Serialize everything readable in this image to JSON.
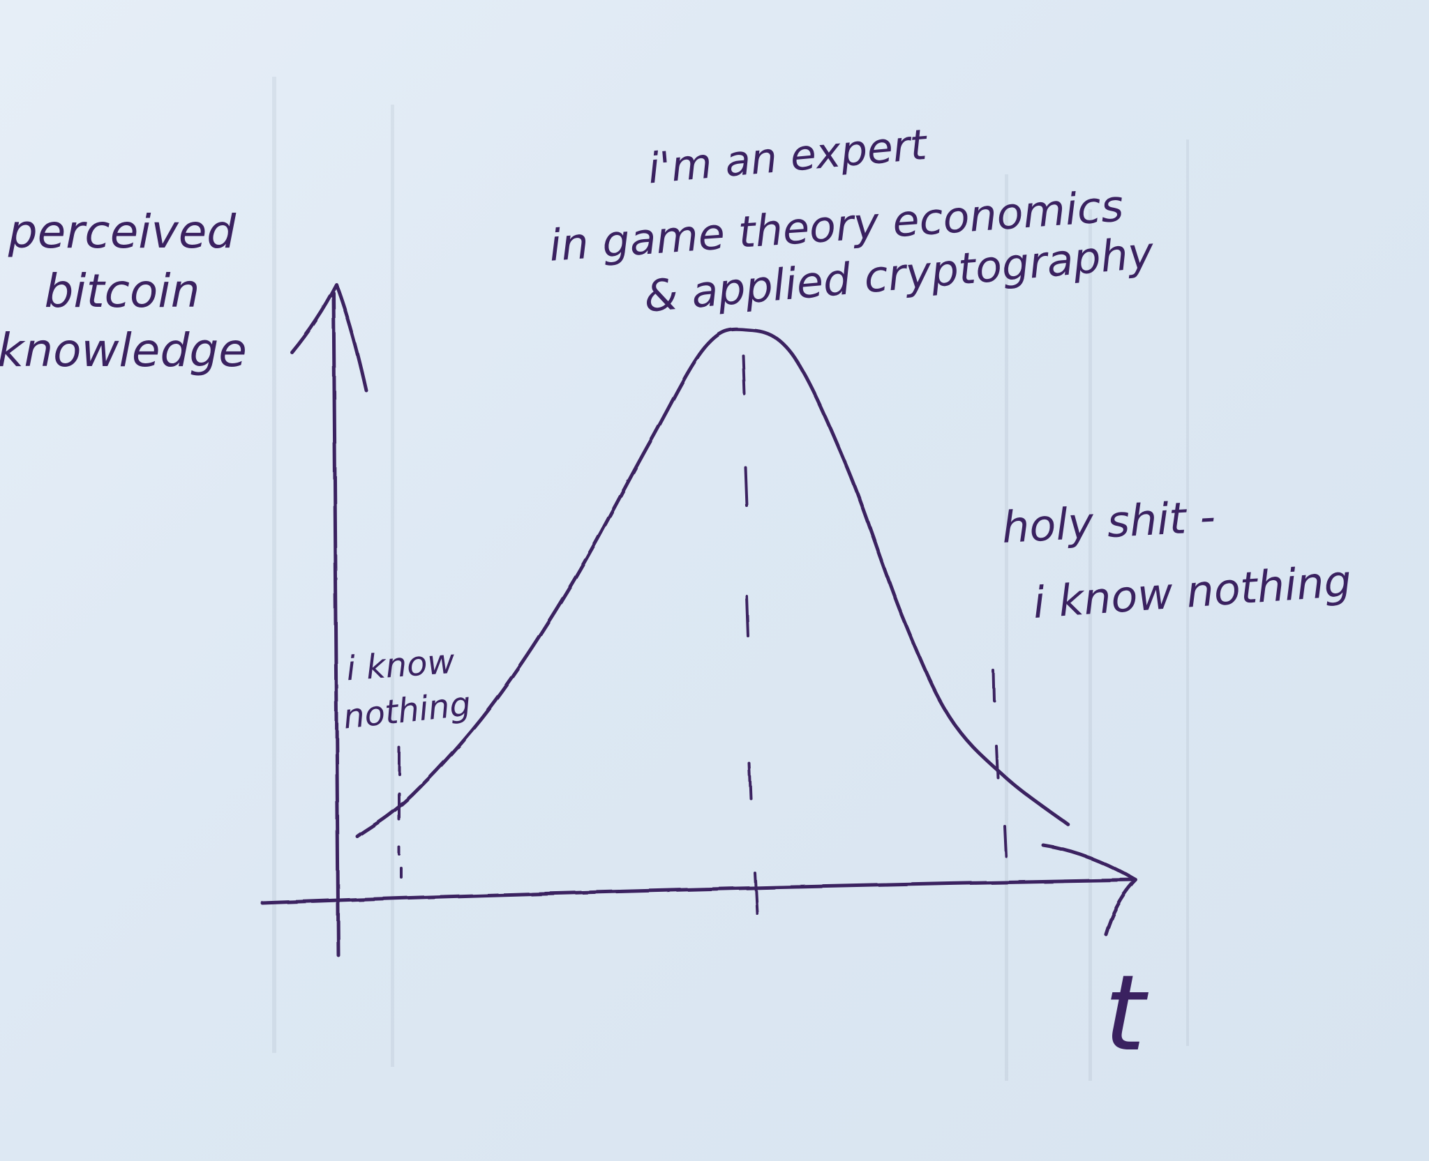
{
  "chart_data": {
    "type": "line",
    "style": "hand-drawn sketch",
    "ylabel": "perceived bitcoin knowledge",
    "xlabel": "t",
    "x": [
      0.03,
      0.1,
      0.2,
      0.3,
      0.4,
      0.47,
      0.52,
      0.58,
      0.65,
      0.72,
      0.78,
      0.85,
      0.93
    ],
    "y": [
      0.1,
      0.17,
      0.32,
      0.52,
      0.76,
      0.92,
      0.95,
      0.91,
      0.72,
      0.47,
      0.3,
      0.2,
      0.12
    ],
    "xlim": [
      0,
      1
    ],
    "ylim": [
      0,
      1
    ],
    "grid": false,
    "legend": "none",
    "annotations": [
      {
        "key": "start",
        "lines": [
          "i know",
          "nothing"
        ],
        "x": 0.07
      },
      {
        "key": "peak",
        "lines": [
          "i'm an expert",
          "in game theory economics",
          "& applied cryptography"
        ],
        "x": 0.49
      },
      {
        "key": "late",
        "lines": [
          "holy shit -",
          "i know nothing"
        ],
        "x": 0.78
      }
    ],
    "ink_color": "#3a2160"
  }
}
